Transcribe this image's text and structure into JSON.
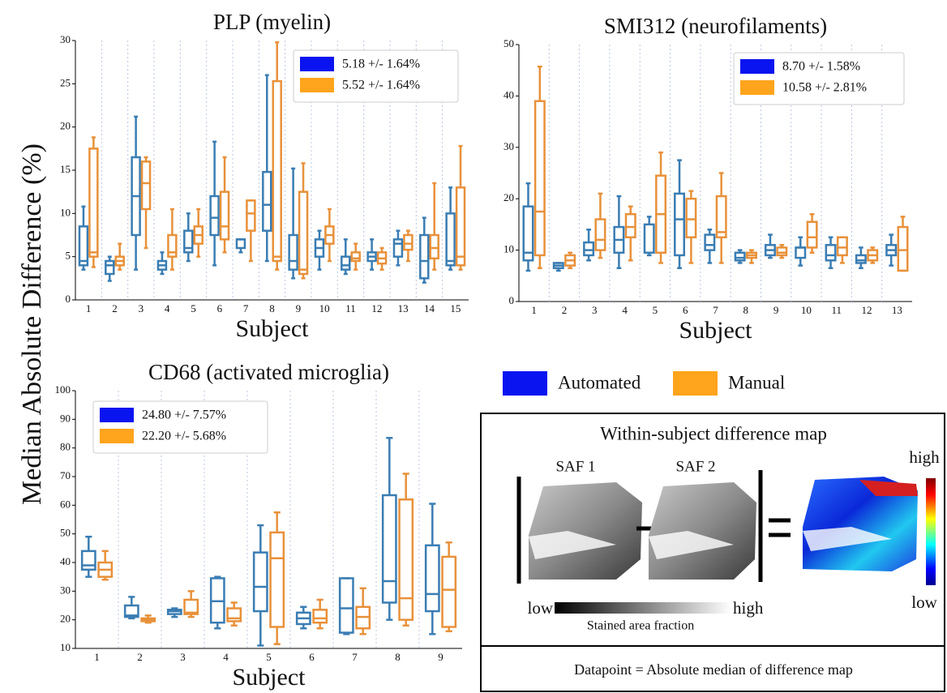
{
  "ylabel": "Median Absolute Difference (%)",
  "legend": [
    {
      "name": "Automated",
      "color": "#0a14f0"
    },
    {
      "name": "Manual",
      "color": "#ffa41c"
    }
  ],
  "chart_data": [
    {
      "type": "box",
      "title": "PLP (myelin)",
      "xlabel": "Subject",
      "categories": [
        "1",
        "2",
        "3",
        "4",
        "5",
        "6",
        "7",
        "8",
        "9",
        "10",
        "11",
        "12",
        "13",
        "14",
        "15"
      ],
      "ylim": [
        0,
        30
      ],
      "yticks": [
        0,
        5,
        10,
        15,
        20,
        25,
        30
      ],
      "grid": "x",
      "series": [
        {
          "name": "Automated",
          "color": "#3a7db3",
          "label": "5.18 +/- 1.64%",
          "boxes": [
            [
              3.5,
              4,
              4.5,
              8.5,
              10.8
            ],
            [
              2.2,
              3,
              4,
              4.5,
              5
            ],
            [
              3.5,
              7.5,
              12,
              16.5,
              21.2
            ],
            [
              3,
              3.5,
              4,
              4.5,
              5.5
            ],
            [
              4.5,
              5.5,
              6,
              8,
              10
            ],
            [
              4,
              7.5,
              9.5,
              12,
              18.3
            ],
            [
              5.5,
              6,
              7,
              7,
              7
            ],
            [
              4.5,
              8,
              11,
              14.8,
              26
            ],
            [
              2.5,
              3.5,
              4.5,
              7.5,
              15.2
            ],
            [
              3.5,
              5,
              6,
              7,
              8
            ],
            [
              3,
              3.5,
              4,
              5,
              7
            ],
            [
              3.5,
              4.5,
              5,
              5.5,
              7
            ],
            [
              4,
              5,
              6.5,
              7,
              8
            ],
            [
              2,
              2.5,
              4.5,
              7.5,
              9.5
            ],
            [
              3.5,
              4,
              4.5,
              10,
              13
            ]
          ]
        },
        {
          "name": "Manual",
          "color": "#e8913a",
          "label": "5.52 +/- 1.64%",
          "boxes": [
            [
              3.8,
              5,
              5.5,
              17.5,
              18.8
            ],
            [
              3.5,
              4,
              4.5,
              5,
              6.5
            ],
            [
              6,
              10.5,
              13.5,
              16,
              16.5
            ],
            [
              3.5,
              5,
              5.5,
              7.5,
              10.5
            ],
            [
              5,
              6.5,
              7.5,
              8.5,
              10.5
            ],
            [
              5.5,
              7,
              8.5,
              12.5,
              16.5
            ],
            [
              4.5,
              8,
              10,
              11.5,
              11.5
            ],
            [
              3.5,
              4.5,
              5,
              25.3,
              29.8
            ],
            [
              2.5,
              3,
              3.5,
              12.5,
              15.8
            ],
            [
              4.5,
              6.5,
              7.5,
              8.5,
              10.5
            ],
            [
              3.5,
              4.5,
              4.8,
              5.5,
              6.5
            ],
            [
              3.5,
              4.2,
              4.8,
              5.5,
              6
            ],
            [
              4.5,
              5.8,
              6.5,
              7.5,
              8
            ],
            [
              3.5,
              4.8,
              6,
              7.5,
              13.5
            ],
            [
              3.5,
              4,
              5,
              13,
              17.8
            ]
          ]
        }
      ]
    },
    {
      "type": "box",
      "title": "SMI312 (neurofilaments)",
      "xlabel": "Subject",
      "categories": [
        "1",
        "2",
        "3",
        "4",
        "5",
        "6",
        "7",
        "8",
        "9",
        "10",
        "11",
        "12",
        "13"
      ],
      "ylim": [
        0,
        50
      ],
      "yticks": [
        0,
        10,
        20,
        30,
        40,
        50
      ],
      "grid": "x",
      "series": [
        {
          "name": "Automated",
          "color": "#3a7db3",
          "label": "8.70 +/- 1.58%",
          "boxes": [
            [
              6,
              8,
              9.5,
              18.5,
              23
            ],
            [
              6,
              6.5,
              7,
              7.5,
              7.5
            ],
            [
              8,
              9,
              10,
              11.5,
              14
            ],
            [
              6.5,
              9.5,
              12,
              14.5,
              20.5
            ],
            [
              9,
              9.5,
              9.5,
              15,
              16.5
            ],
            [
              6.5,
              9,
              16,
              21,
              27.5
            ],
            [
              7.5,
              10,
              11,
              13,
              14
            ],
            [
              7.5,
              8,
              8.5,
              9.5,
              10
            ],
            [
              8.5,
              9,
              10,
              11,
              13
            ],
            [
              7,
              8.5,
              10.5,
              10.5,
              12.5
            ],
            [
              6.5,
              8,
              9,
              11,
              12.5
            ],
            [
              6.5,
              7.5,
              8,
              9,
              10.5
            ],
            [
              7,
              9,
              10,
              11,
              13
            ]
          ]
        },
        {
          "name": "Manual",
          "color": "#e8913a",
          "label": "10.58 +/- 2.81%",
          "boxes": [
            [
              6.5,
              9,
              17.5,
              39,
              45.7
            ],
            [
              6.5,
              7,
              8,
              9,
              9.5
            ],
            [
              8.5,
              10,
              12,
              16,
              21
            ],
            [
              8,
              12.5,
              14.5,
              17,
              18.5
            ],
            [
              7.5,
              9.5,
              17,
              24.5,
              29
            ],
            [
              7.5,
              12.5,
              16,
              20,
              21.5
            ],
            [
              7.5,
              12.5,
              13.5,
              20.5,
              25
            ],
            [
              7.5,
              8.5,
              9,
              9.5,
              10
            ],
            [
              8.5,
              9,
              9.5,
              10.5,
              11
            ],
            [
              9.5,
              10.5,
              12.5,
              15.5,
              17
            ],
            [
              7.5,
              9,
              10.5,
              12.5,
              12.5
            ],
            [
              7.5,
              8,
              9,
              10,
              10.5
            ],
            [
              6,
              6,
              10,
              14.5,
              16.5
            ]
          ]
        }
      ]
    },
    {
      "type": "box",
      "title": "CD68 (activated microglia)",
      "xlabel": "Subject",
      "categories": [
        "1",
        "2",
        "3",
        "4",
        "5",
        "6",
        "7",
        "8",
        "9"
      ],
      "ylim": [
        10,
        100
      ],
      "yticks": [
        10,
        20,
        30,
        40,
        50,
        60,
        70,
        80,
        90,
        100
      ],
      "grid": "x",
      "series": [
        {
          "name": "Automated",
          "color": "#3a7db3",
          "label": "24.80 +/- 7.57%",
          "boxes": [
            [
              35,
              37.5,
              39,
              44,
              49
            ],
            [
              20.5,
              21,
              21.5,
              25,
              28
            ],
            [
              21,
              22,
              23,
              23.5,
              24
            ],
            [
              17,
              19,
              26.5,
              34.5,
              35
            ],
            [
              11,
              23,
              31.5,
              43.5,
              53
            ],
            [
              17,
              18.5,
              20.5,
              22.5,
              24.5
            ],
            [
              15,
              15.5,
              24,
              34.5,
              34.5
            ],
            [
              20,
              26,
              33.5,
              63.5,
              83.5
            ],
            [
              15,
              23,
              29,
              46,
              60.5
            ]
          ]
        },
        {
          "name": "Manual",
          "color": "#e8913a",
          "label": "22.20 +/- 5.68%",
          "boxes": [
            [
              34,
              35,
              37.5,
              40,
              44
            ],
            [
              19,
              19.5,
              20,
              20.5,
              21.5
            ],
            [
              21,
              22,
              22.5,
              27,
              30
            ],
            [
              18,
              19.5,
              20.5,
              24,
              26
            ],
            [
              11.5,
              17.5,
              41.5,
              50.5,
              57.5
            ],
            [
              17,
              19,
              20.5,
              23.5,
              27
            ],
            [
              15,
              17,
              21,
              24.5,
              31
            ],
            [
              18,
              20,
              27.5,
              62,
              71
            ],
            [
              16,
              17.5,
              30.5,
              42,
              47
            ]
          ]
        }
      ]
    }
  ],
  "diagram": {
    "title": "Within-subject difference map",
    "left_label": "SAF 1",
    "right_label": "SAF 2",
    "map_high": "high",
    "map_low": "low",
    "bar_low": "low",
    "bar_high": "high",
    "bar_caption": "Stained area fraction",
    "footer": "Datapoint = Absolute median of difference map"
  }
}
